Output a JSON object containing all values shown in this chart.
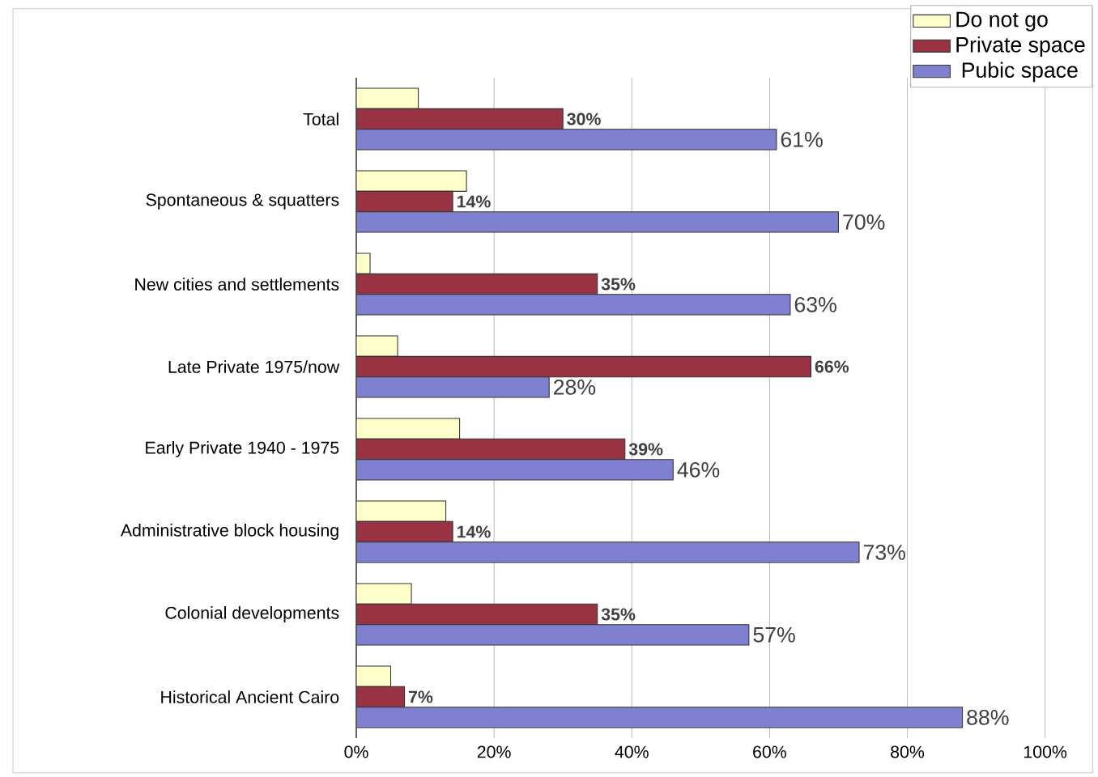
{
  "chart_data": {
    "type": "bar",
    "orientation": "horizontal",
    "categories": [
      "Total",
      "Spontaneous & squatters",
      "New cities and settlements",
      "Late Private  1975/now",
      "Early Private  1940 - 1975",
      "Administrative block housing",
      "Colonial  developments",
      "Historical Ancient Cairo"
    ],
    "series": [
      {
        "name": "Do not go",
        "color": "#ffffcc",
        "values": [
          9,
          16,
          2,
          6,
          15,
          13,
          8,
          5
        ]
      },
      {
        "name": "Private space",
        "color": "#993344",
        "values": [
          30,
          14,
          35,
          66,
          39,
          14,
          35,
          7
        ],
        "value_labels": [
          "30%",
          "14%",
          "35%",
          "66%",
          "39%",
          "14%",
          "35%",
          "7%"
        ]
      },
      {
        "name": " Pubic space",
        "color": "#8080d0",
        "values": [
          61,
          70,
          63,
          28,
          46,
          73,
          57,
          88
        ],
        "value_labels": [
          "61%",
          "70%",
          "63%",
          "28%",
          "46%",
          "73%",
          "57%",
          "88%"
        ]
      }
    ],
    "xlim": [
      0,
      100
    ],
    "xticks": [
      {
        "value": 0,
        "label": "0%"
      },
      {
        "value": 20,
        "label": "20%"
      },
      {
        "value": 40,
        "label": "40%"
      },
      {
        "value": 60,
        "label": "60%"
      },
      {
        "value": 80,
        "label": "80%"
      },
      {
        "value": 100,
        "label": "100%"
      }
    ],
    "grid": "x",
    "legend": "top right"
  }
}
